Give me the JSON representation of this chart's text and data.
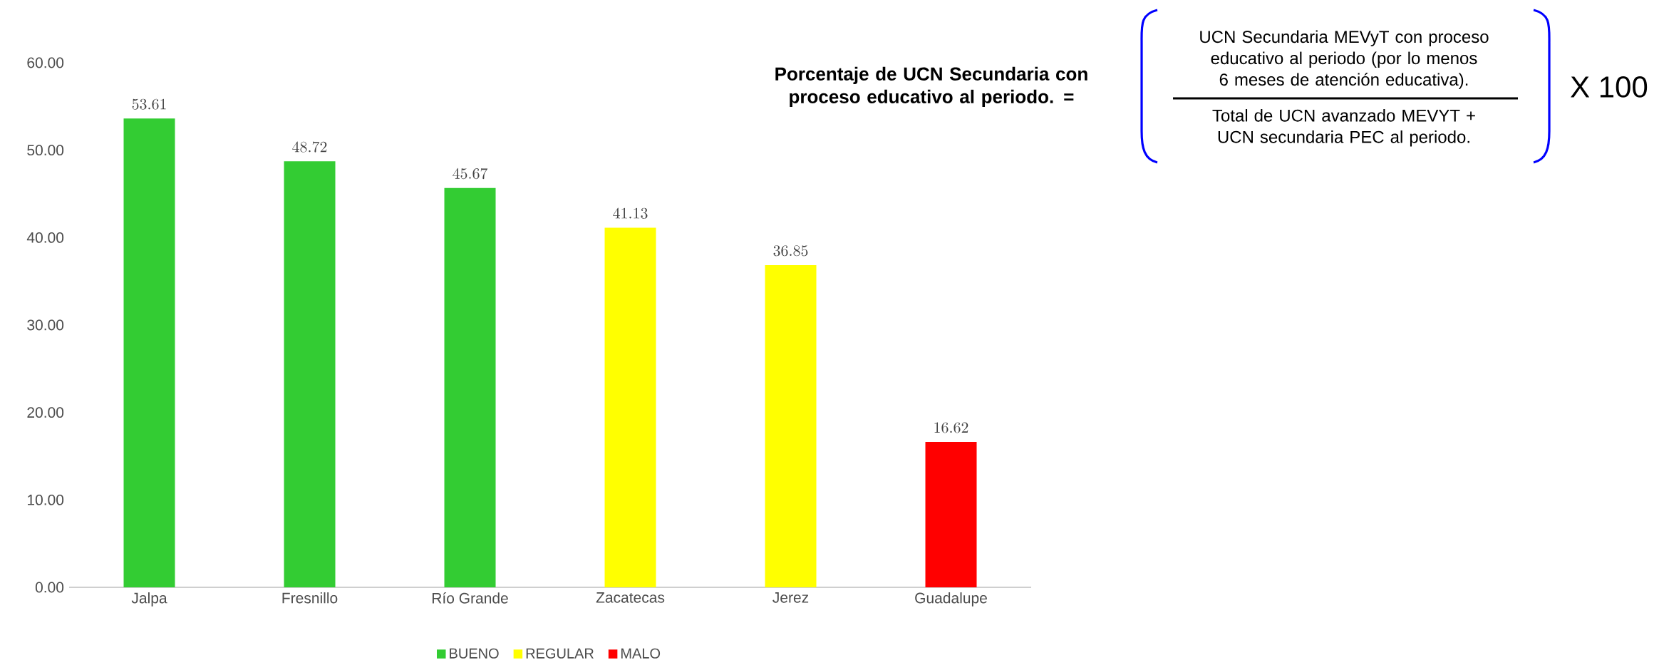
{
  "chart_data": {
    "type": "bar",
    "categories": [
      "Jalpa",
      "Fresnillo",
      "Río Grande",
      "Zacatecas",
      "Jerez",
      "Guadalupe"
    ],
    "series": [
      {
        "name": "BUENO",
        "color": "#33cc33",
        "values": [
          53.61,
          48.72,
          45.67,
          null,
          null,
          null
        ]
      },
      {
        "name": "REGULAR",
        "color": "#ffff00",
        "values": [
          null,
          null,
          null,
          41.13,
          36.85,
          null
        ]
      },
      {
        "name": "MALO",
        "color": "#ff0000",
        "values": [
          null,
          null,
          null,
          null,
          null,
          16.62
        ]
      }
    ],
    "ylim": [
      0,
      60
    ],
    "yticks": [
      {
        "value": 0,
        "label": "0.00"
      },
      {
        "value": 10,
        "label": "10.00"
      },
      {
        "value": 20,
        "label": "20.00"
      },
      {
        "value": 30,
        "label": "30.00"
      },
      {
        "value": 40,
        "label": "40.00"
      },
      {
        "value": 50,
        "label": "50.00"
      },
      {
        "value": 60,
        "label": "60.00"
      }
    ],
    "data_labels": true,
    "legend": "bottom",
    "grid": false,
    "annotations": [
      "**Porcentaje de UCN Secundaria con proceso educativo al periodo. =**",
      "UCN Secundaria MEVyT con proceso educativo al periodo (por lo menos 6 meses de atención educativa).",
      "Total de UCN avanzado MEVYT + UCN secundaria PEC al periodo.",
      "X 100"
    ]
  }
}
